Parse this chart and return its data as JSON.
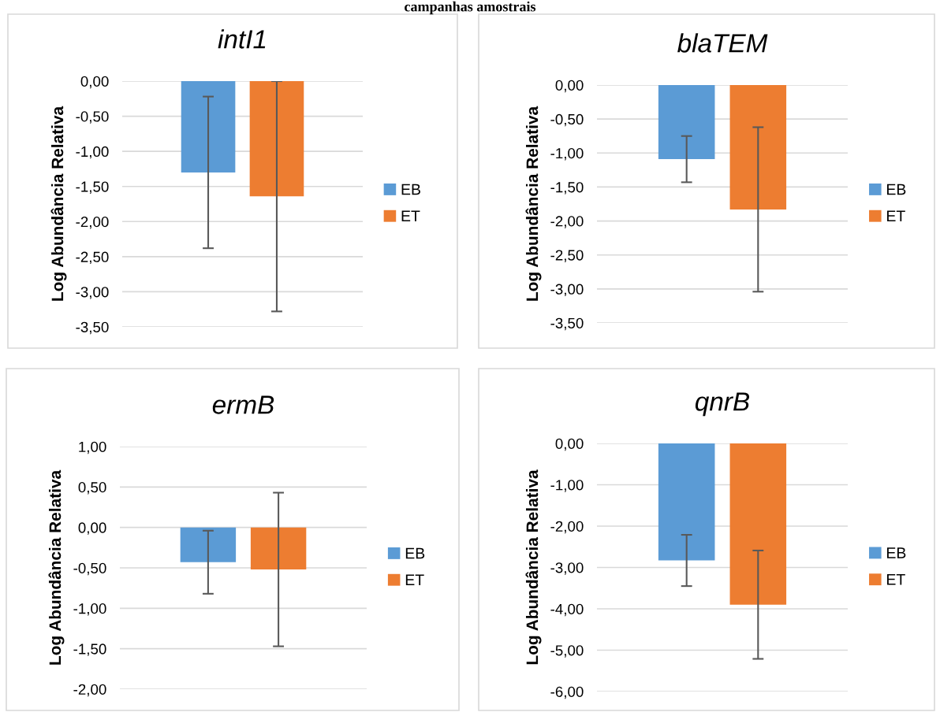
{
  "chart_data": [
    {
      "type": "bar",
      "title": "intI1",
      "ylabel": "Log Abundância Relativa",
      "annotations": [
        "campanhas amostrais"
      ],
      "categories": [
        null
      ],
      "series": [
        {
          "name": "EB",
          "color": "#5b9bd5",
          "values": [
            -1.3
          ],
          "errors": [
            1.08
          ]
        },
        {
          "name": "ET",
          "color": "#ed7d31",
          "values": [
            -1.64
          ],
          "errors": [
            1.64
          ]
        }
      ],
      "ylim": [
        -3.5,
        0
      ],
      "yticks": [
        {
          "value": 0,
          "label": "0,00"
        },
        {
          "value": -0.5,
          "label": "-0,50"
        },
        {
          "value": -1,
          "label": "-1,00"
        },
        {
          "value": -1.5,
          "label": "-1,50"
        },
        {
          "value": -2,
          "label": "-2,00"
        },
        {
          "value": -2.5,
          "label": "-2,50"
        },
        {
          "value": -3,
          "label": "-3,00"
        },
        {
          "value": -3.5,
          "label": "-3,50"
        }
      ],
      "grid": "y",
      "legend": "right",
      "tick_labels": "y"
    },
    {
      "type": "bar",
      "title": "blaTEM",
      "ylabel": "Log Abundância Relativa",
      "categories": [
        null
      ],
      "series": [
        {
          "name": "EB",
          "color": "#5b9bd5",
          "values": [
            -1.09
          ],
          "errors": [
            0.34
          ]
        },
        {
          "name": "ET",
          "color": "#ed7d31",
          "values": [
            -1.83
          ],
          "errors": [
            1.21
          ]
        }
      ],
      "ylim": [
        -3.5,
        0
      ],
      "yticks": [
        {
          "value": 0,
          "label": "0,00"
        },
        {
          "value": -0.5,
          "label": "-0,50"
        },
        {
          "value": -1,
          "label": "-1,00"
        },
        {
          "value": -1.5,
          "label": "-1,50"
        },
        {
          "value": -2,
          "label": "-2,00"
        },
        {
          "value": -2.5,
          "label": "-2,50"
        },
        {
          "value": -3,
          "label": "-3,00"
        },
        {
          "value": -3.5,
          "label": "-3,50"
        }
      ],
      "grid": "y",
      "legend": "right",
      "tick_labels": "y"
    },
    {
      "type": "bar",
      "title": "ermB",
      "ylabel": "Log Abundância Relativa",
      "categories": [
        null
      ],
      "series": [
        {
          "name": "EB",
          "color": "#5b9bd5",
          "values": [
            -0.43
          ],
          "errors": [
            0.39
          ]
        },
        {
          "name": "ET",
          "color": "#ed7d31",
          "values": [
            -0.52
          ],
          "errors": [
            0.95
          ]
        }
      ],
      "ylim": [
        -2,
        1
      ],
      "yticks": [
        {
          "value": 1,
          "label": "1,00"
        },
        {
          "value": 0.5,
          "label": "0,50"
        },
        {
          "value": 0,
          "label": "0,00"
        },
        {
          "value": -0.5,
          "label": "-0,50"
        },
        {
          "value": -1,
          "label": "-1,00"
        },
        {
          "value": -1.5,
          "label": "-1,50"
        },
        {
          "value": -2,
          "label": "-2,00"
        }
      ],
      "grid": "y",
      "legend": "right",
      "tick_labels": "y"
    },
    {
      "type": "bar",
      "title": "qnrB",
      "ylabel": "Log Abundância Relativa",
      "categories": [
        null
      ],
      "series": [
        {
          "name": "EB",
          "color": "#5b9bd5",
          "values": [
            -2.83
          ],
          "errors": [
            0.62
          ]
        },
        {
          "name": "ET",
          "color": "#ed7d31",
          "values": [
            -3.9
          ],
          "errors": [
            1.31
          ]
        }
      ],
      "ylim": [
        -6,
        0
      ],
      "yticks": [
        {
          "value": 0,
          "label": "0,00"
        },
        {
          "value": -1,
          "label": "-1,00"
        },
        {
          "value": -2,
          "label": "-2,00"
        },
        {
          "value": -3,
          "label": "-3,00"
        },
        {
          "value": -4,
          "label": "-4,00"
        },
        {
          "value": -5,
          "label": "-5,00"
        },
        {
          "value": -6,
          "label": "-6,00"
        }
      ],
      "grid": "y",
      "legend": "right",
      "tick_labels": "y"
    }
  ]
}
